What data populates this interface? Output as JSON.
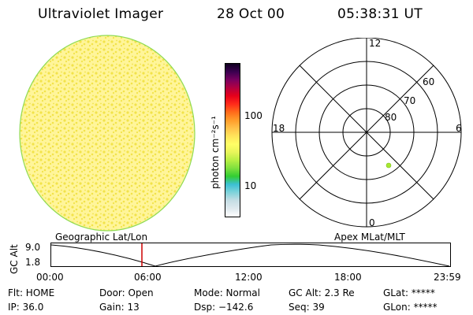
{
  "header": {
    "instrument": "Ultraviolet Imager",
    "date": "28 Oct 00",
    "time": "05:38:31 UT"
  },
  "colorbar": {
    "unit": "photon cm⁻²s⁻¹",
    "ticks": [
      {
        "value": 100,
        "label": "100"
      },
      {
        "value": 10,
        "label": "10"
      }
    ],
    "colors": [
      "#ffffff",
      "#dfe9ee",
      "#c5dde4",
      "#7fd3da",
      "#3cc0d4",
      "#32cd32",
      "#7ee03e",
      "#b7ef44",
      "#e8f55a",
      "#ffff66",
      "#ffe45a",
      "#ffc14a",
      "#ff9c2a",
      "#ff6a1a",
      "#ff2a1a",
      "#e6001a",
      "#b30040",
      "#7a0060",
      "#3b0050",
      "#100020"
    ]
  },
  "polar_plot": {
    "mlt_labels": [
      "12",
      "6",
      "0",
      "18"
    ],
    "lat_labels": [
      "60",
      "70",
      "80"
    ],
    "marker_color": "#a8e830"
  },
  "image": {
    "fill_color": "#fff59a",
    "dot_color": "#f2e34a",
    "rim_color": "#8fdb54"
  },
  "timeline": {
    "left_label": "Geographic Lat/Lon",
    "right_label": "Apex MLat/MLT",
    "axis_title": "GC Alt",
    "y_top": "9.0",
    "y_bottom": "1.8",
    "x_ticks": [
      "00:00",
      "06:00",
      "12:00",
      "18:00",
      "23:59"
    ],
    "marker_color": "#cc0000"
  },
  "status": {
    "flt": "Flt: HOME",
    "ip": "IP: 36.0",
    "door": "Door: Open",
    "gain": "Gain: 13",
    "mode": "Mode: Normal",
    "dsp": "Dsp: −142.6",
    "gcalt": "GC Alt: 2.3 Re",
    "seq": "Seq: 39",
    "glat": "GLat: *****",
    "glon": "GLon: *****"
  }
}
